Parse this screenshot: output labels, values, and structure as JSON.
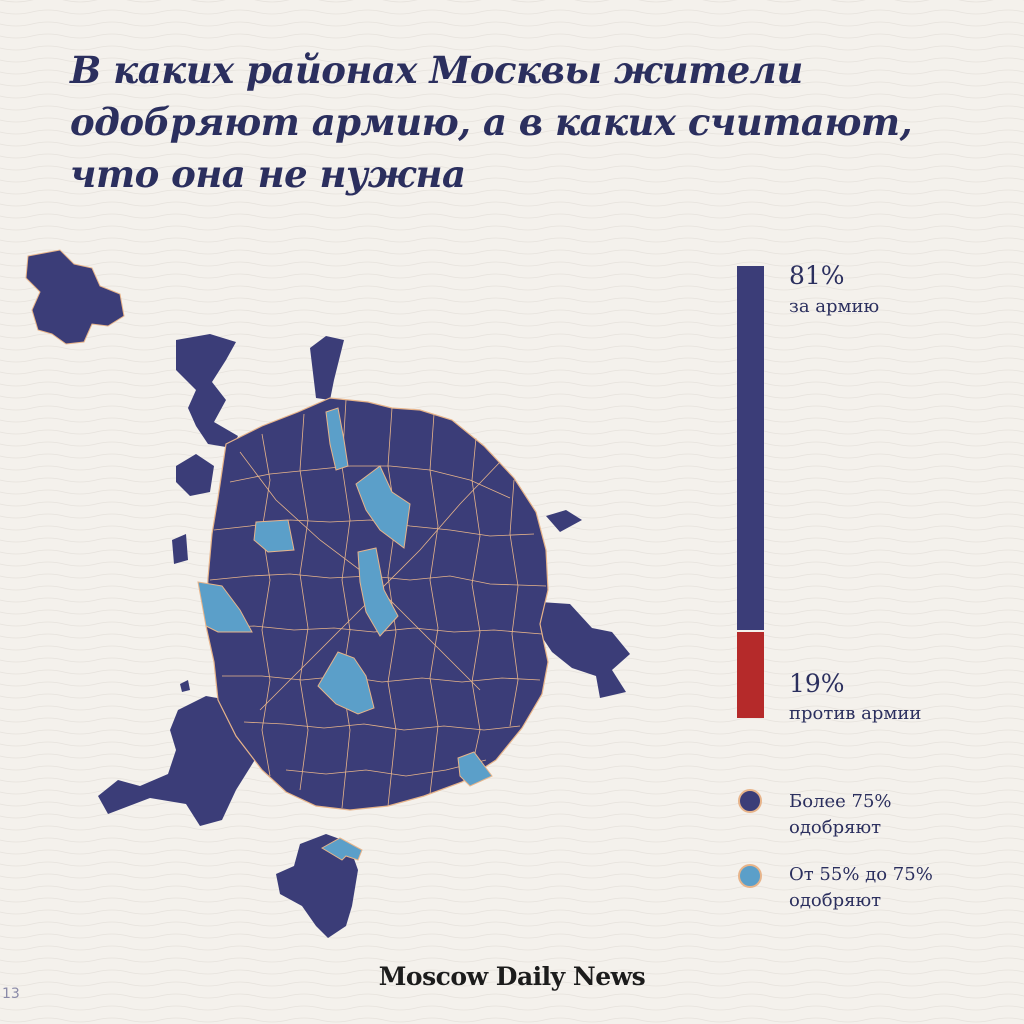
{
  "title": {
    "line1": "В каких районах Москвы жители",
    "line2": "одобряют армию, а в каких считают,",
    "line3": "что она не нужна"
  },
  "stats": {
    "for": {
      "percent": 81,
      "value": "81%",
      "label": "за армию",
      "color": "#3b3d78"
    },
    "against": {
      "percent": 19,
      "value": "19%",
      "label": "против армии",
      "color": "#b52a2a"
    }
  },
  "legend": {
    "high": {
      "line1": "Более 75%",
      "line2": "одобряют",
      "color": "#3b3d78"
    },
    "mid": {
      "line1": "От 55% до 75%",
      "line2": "одобряют",
      "color": "#5b9fc9"
    }
  },
  "map": {
    "border_color": "#e7b48a",
    "regions": {
      "high_approval_color": "#3b3d78",
      "mid_approval_color": "#5b9fc9"
    }
  },
  "brand": "Moscow Daily News",
  "corner_mark": "13"
}
